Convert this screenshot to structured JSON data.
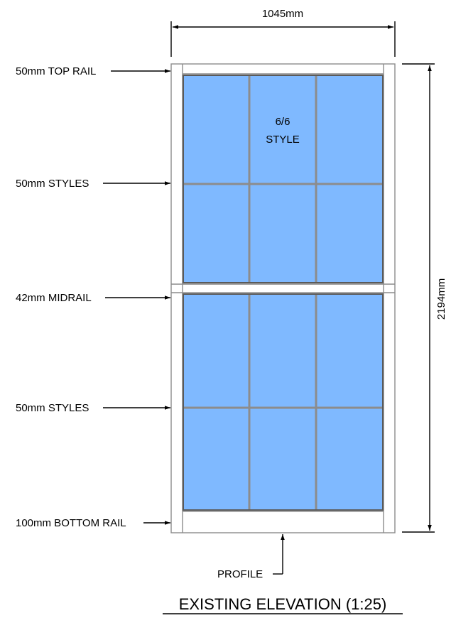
{
  "dimensions": {
    "width_label": "1045mm",
    "height_label": "2194mm"
  },
  "callouts": {
    "top_rail": "50mm TOP RAIL",
    "styles_upper": "50mm STYLES",
    "midrail": "42mm MIDRAIL",
    "styles_lower": "50mm STYLES",
    "bottom_rail": "100mm BOTTOM RAIL",
    "profile": "PROFILE"
  },
  "pane_label": {
    "line1": "6/6",
    "line2": "STYLE"
  },
  "title": "EXISTING ELEVATION (1:25)",
  "colors": {
    "glass": "#7fb9ff",
    "frame": "#8c8c8c",
    "line": "#000000"
  }
}
